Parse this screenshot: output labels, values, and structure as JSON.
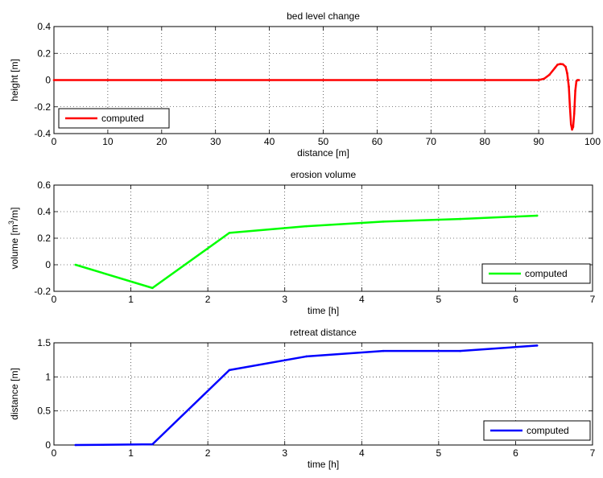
{
  "chart_data": [
    {
      "type": "line",
      "title": "bed level change",
      "xlabel": "distance [m]",
      "ylabel": "height [m]",
      "xlim": [
        0,
        100
      ],
      "ylim": [
        -0.4,
        0.4
      ],
      "xticks": [
        0,
        10,
        20,
        30,
        40,
        50,
        60,
        70,
        80,
        90,
        100
      ],
      "yticks": [
        -0.4,
        -0.2,
        0,
        0.2,
        0.4
      ],
      "xtick_labels": [
        "0",
        "10",
        "20",
        "30",
        "40",
        "50",
        "60",
        "70",
        "80",
        "90",
        "100"
      ],
      "ytick_labels": [
        "-0.4",
        "-0.2",
        "0",
        "0.2",
        "0.4"
      ],
      "grid": true,
      "legend": "bottom-left",
      "series": [
        {
          "name": "computed",
          "color": "#ff0000",
          "x": [
            0,
            10,
            20,
            30,
            40,
            50,
            60,
            70,
            80,
            90,
            91,
            92,
            93,
            93.5,
            94,
            94.5,
            95,
            95.3,
            95.6,
            95.8,
            96,
            96.2,
            96.4,
            96.6,
            96.8,
            97,
            97.2,
            97.5
          ],
          "y": [
            0,
            0,
            0,
            0,
            0,
            0,
            0,
            0,
            0,
            0,
            0.01,
            0.04,
            0.09,
            0.115,
            0.12,
            0.118,
            0.1,
            0.05,
            -0.05,
            -0.2,
            -0.33,
            -0.37,
            -0.35,
            -0.25,
            -0.08,
            -0.01,
            0,
            0
          ]
        }
      ]
    },
    {
      "type": "line",
      "title": "erosion volume",
      "xlabel": "time [h]",
      "ylabel_main": "volume [m",
      "ylabel_sup": "3",
      "ylabel_tail": "/m]",
      "xlim": [
        0,
        7
      ],
      "ylim": [
        -0.2,
        0.6
      ],
      "xticks": [
        0,
        1,
        2,
        3,
        4,
        5,
        6,
        7
      ],
      "yticks": [
        -0.2,
        0,
        0.2,
        0.4,
        0.6
      ],
      "xtick_labels": [
        "0",
        "1",
        "2",
        "3",
        "4",
        "5",
        "6",
        "7"
      ],
      "ytick_labels": [
        "-0.2",
        "0",
        "0.2",
        "0.4",
        "0.6"
      ],
      "grid": true,
      "legend": "bottom-right",
      "series": [
        {
          "name": "computed",
          "color": "#00ff00",
          "x": [
            0.28,
            1.28,
            2.28,
            3.28,
            4.28,
            5.28,
            6.28
          ],
          "y": [
            0.0,
            -0.175,
            0.24,
            0.29,
            0.325,
            0.345,
            0.37
          ]
        }
      ]
    },
    {
      "type": "line",
      "title": "retreat distance",
      "xlabel": "time [h]",
      "ylabel": "distance [m]",
      "xlim": [
        0,
        7
      ],
      "ylim": [
        0,
        1.5
      ],
      "xticks": [
        0,
        1,
        2,
        3,
        4,
        5,
        6,
        7
      ],
      "yticks": [
        0,
        0.5,
        1,
        1.5
      ],
      "xtick_labels": [
        "0",
        "1",
        "2",
        "3",
        "4",
        "5",
        "6",
        "7"
      ],
      "ytick_labels": [
        "0",
        "0.5",
        "1",
        "1.5"
      ],
      "grid": true,
      "legend": "bottom-right",
      "series": [
        {
          "name": "computed",
          "color": "#0000ff",
          "x": [
            0.28,
            1.28,
            2.28,
            3.28,
            4.28,
            5.28,
            6.28
          ],
          "y": [
            0.0,
            0.01,
            1.1,
            1.3,
            1.38,
            1.38,
            1.46
          ]
        }
      ]
    }
  ]
}
